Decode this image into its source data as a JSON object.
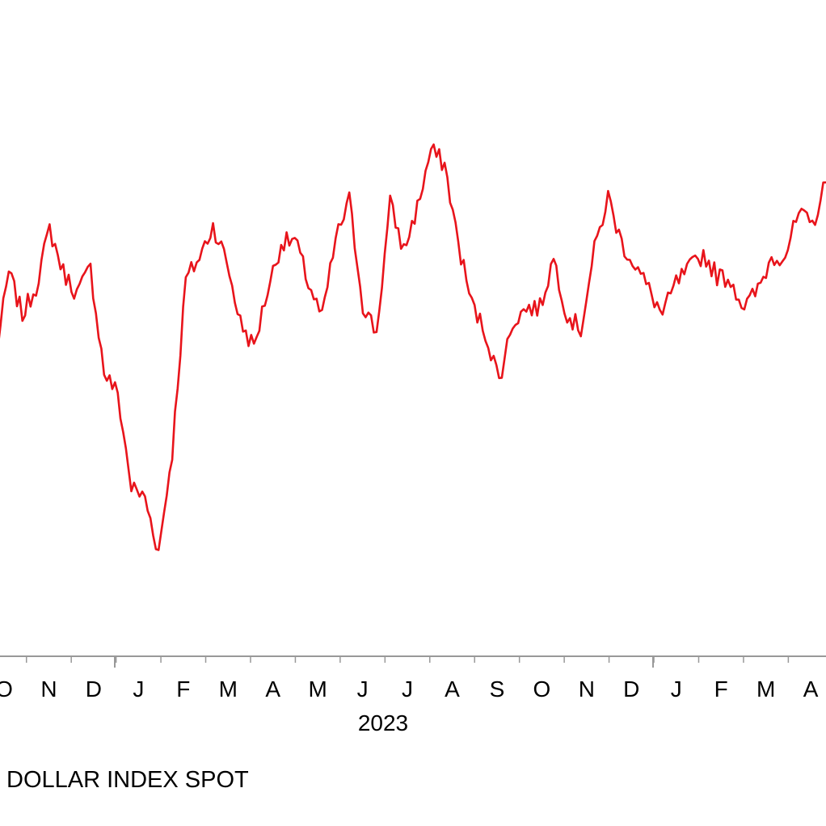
{
  "chart_data": {
    "type": "line",
    "title": "",
    "xlabel": "",
    "ylabel": "",
    "x_tick_labels": [
      "O",
      "N",
      "D",
      "J",
      "F",
      "M",
      "A",
      "M",
      "J",
      "J",
      "A",
      "S",
      "O",
      "N",
      "D",
      "J",
      "F",
      "M",
      "A"
    ],
    "year_label": "2023",
    "grid": false,
    "legend_position": "bottom-left",
    "series": [
      {
        "name": "DOLLAR INDEX SPOT",
        "color": "#e8141b",
        "weekly_values": [
          101.5,
          104.0,
          102.8,
          103.6,
          105.2,
          104.0,
          103.4,
          104.1,
          101.2,
          100.6,
          98.0,
          97.7,
          96.2,
          99.0,
          103.8,
          104.4,
          105.3,
          104.3,
          102.6,
          101.9,
          103.5,
          104.8,
          104.9,
          103.7,
          102.7,
          104.9,
          106.0,
          103.1,
          102.3,
          105.9,
          104.6,
          105.8,
          107.4,
          107.0,
          104.8,
          103.1,
          102.3,
          101.0,
          102.6,
          103.0,
          103.0,
          104.4,
          102.8,
          102.4,
          104.6,
          106.1,
          104.8,
          104.2,
          103.5,
          102.8,
          103.7,
          104.1,
          104.5,
          103.9,
          103.8,
          103.0,
          103.5,
          104.4,
          104.5,
          105.6,
          105.3,
          106.5
        ]
      }
    ]
  }
}
